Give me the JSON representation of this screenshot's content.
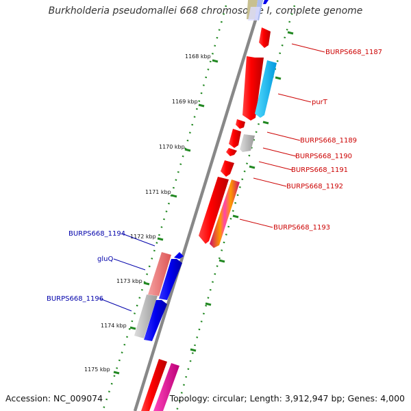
{
  "header": {
    "title": "Burkholderia pseudomallei 668 chromosome I, complete genome"
  },
  "footer": {
    "accession": "Accession: NC_009074",
    "topology": "Topology: circular; Length: 3,912,947 bp; Genes: 4,000"
  },
  "ruler": {
    "ticks": [
      "1168 kbp",
      "1169 kbp",
      "1170 kbp",
      "1171 kbp",
      "1172 kbp",
      "1173 kbp",
      "1174 kbp",
      "1175 kbp"
    ]
  },
  "genes": {
    "forward": [
      "BURPS668_1187",
      "purT",
      "BURPS668_1189",
      "BURPS668_1190",
      "BURPS668_1191",
      "BURPS668_1192",
      "BURPS668_1193"
    ],
    "reverse": [
      "BURPS668_1194",
      "gluQ",
      "BURPS668_1196"
    ]
  },
  "colors": {
    "forward_label": "#cc0000",
    "reverse_label": "#0000aa",
    "cds_red": "#ff0000",
    "cds_blue": "#0000ee",
    "cds_cyan": "#00bbee",
    "cds_pink": "#ee2299",
    "cds_gray": "#aaaaaa",
    "cds_salmon": "#ee7777",
    "backbone": "#888888",
    "dots": "#228822"
  }
}
